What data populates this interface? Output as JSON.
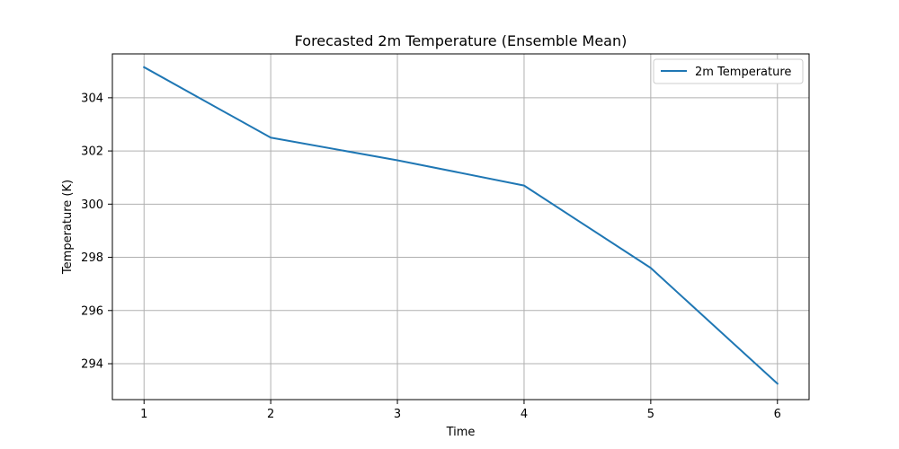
{
  "chart_data": {
    "type": "line",
    "title": "Forecasted 2m Temperature (Ensemble Mean)",
    "xlabel": "Time",
    "ylabel": "Temperature (K)",
    "x": [
      1,
      2,
      3,
      4,
      5,
      6
    ],
    "xticks": [
      "1",
      "2",
      "3",
      "4",
      "5",
      "6"
    ],
    "yticks": [
      "294",
      "296",
      "298",
      "300",
      "302",
      "304"
    ],
    "ytick_values": [
      294,
      296,
      298,
      300,
      302,
      304
    ],
    "xlim": [
      0.75,
      6.25
    ],
    "ylim": [
      292.65,
      305.65
    ],
    "grid": true,
    "legend_position": "top-right",
    "series": [
      {
        "name": "2m Temperature",
        "color": "#1f77b4",
        "values": [
          305.15,
          302.5,
          301.65,
          300.7,
          297.6,
          293.25
        ]
      }
    ]
  }
}
